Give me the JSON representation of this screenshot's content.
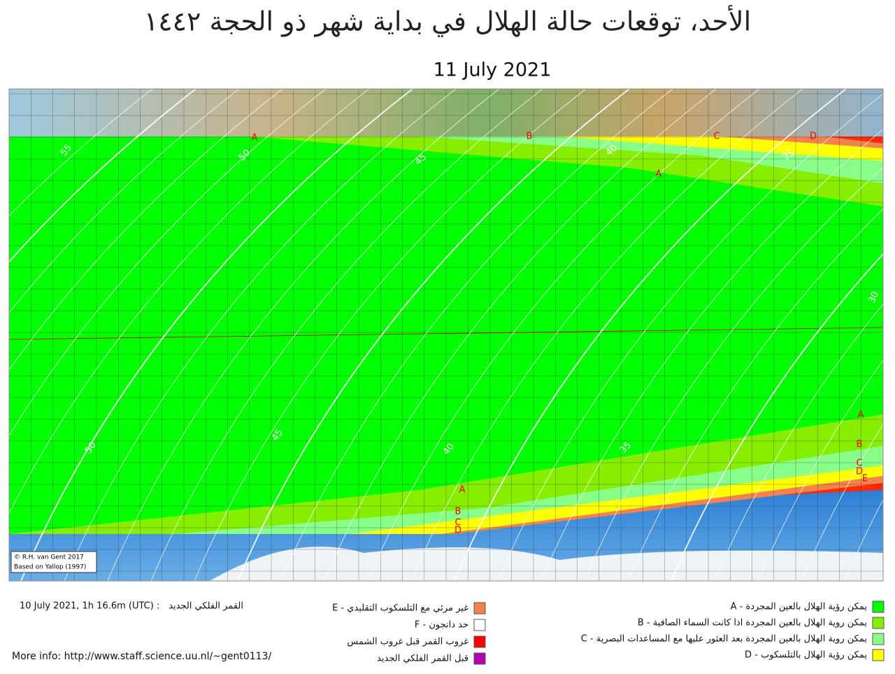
{
  "header": {
    "title": "الأحد، توقعات حالة الهلال في بداية شهر ذو الحجة ١٤٤٢",
    "date": "11 July 2021"
  },
  "map": {
    "credit": "© R.H. van Gent 2017",
    "basis": "Based on Yallop (1997)",
    "contour_labels": [
      "55",
      "50",
      "45",
      "40",
      "35",
      "30",
      "50",
      "45",
      "40",
      "35"
    ],
    "zone_labels": [
      "A",
      "B",
      "C",
      "D",
      "A",
      "A",
      "B",
      "C",
      "D",
      "A",
      "B",
      "C",
      "D",
      "E"
    ]
  },
  "footer": {
    "new_moon_value": "10 July 2021, 1h 16.6m (UTC) :",
    "new_moon_label": "القمر الفلكي الجديد",
    "more_info": "More info: http://www.staff.science.uu.nl/~gent0113/"
  },
  "legend": {
    "left": [
      {
        "label": "E - غير مرئي مع التلسكوب التقليدي",
        "color": "#f4824f"
      },
      {
        "label": "F - حد دانجون",
        "color": "#ffffff"
      },
      {
        "label": "غروب القمر قبل غروب الشمس",
        "color": "#ff0000"
      },
      {
        "label": "قبل القمر  الفلكي الجديد",
        "color": "#b000b0"
      }
    ],
    "right": [
      {
        "label": "A - يمكن رؤية الهلال بالعين المجردة",
        "color": "#00ff00"
      },
      {
        "label": "B - يمكن روية الهلال بالعين المجردة اذا كانت السماء الصافية",
        "color": "#88ee00"
      },
      {
        "label": "C - يمكن روية الهلال بالعين المجردة بعد العثور عليها مع المساعدات البصرية",
        "color": "#88ff88"
      },
      {
        "label": "D - يمكن رؤية الهلال بالتلسكوب",
        "color": "#ffff00"
      }
    ]
  }
}
